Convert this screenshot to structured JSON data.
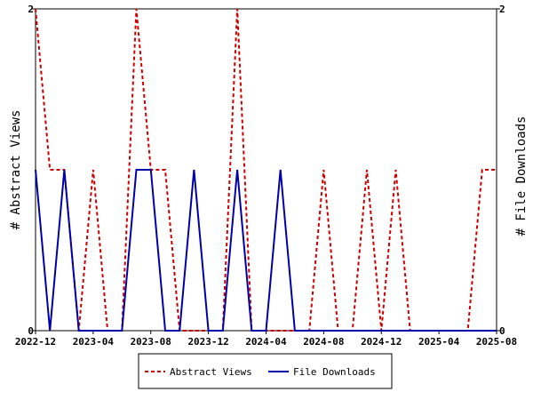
{
  "chart_data": {
    "type": "line",
    "ylabel_left": "# Abstract Views",
    "ylabel_right": "# File Downloads",
    "ylim": [
      0,
      2
    ],
    "yticks": [
      "0",
      "2"
    ],
    "xtick_labels": [
      "2022-12",
      "2023-04",
      "2023-08",
      "2023-12",
      "2024-04",
      "2024-08",
      "2024-12",
      "2025-04",
      "2025-08"
    ],
    "x": [
      "2022-12",
      "2023-01",
      "2023-02",
      "2023-03",
      "2023-04",
      "2023-05",
      "2023-06",
      "2023-07",
      "2023-08",
      "2023-09",
      "2023-10",
      "2023-11",
      "2023-12",
      "2024-01",
      "2024-02",
      "2024-03",
      "2024-04",
      "2024-05",
      "2024-06",
      "2024-07",
      "2024-08",
      "2024-09",
      "2024-10",
      "2024-11",
      "2024-12",
      "2025-01",
      "2025-02",
      "2025-03",
      "2025-04",
      "2025-05",
      "2025-06",
      "2025-07",
      "2025-08"
    ],
    "series": [
      {
        "name": "Abstract Views",
        "color": "#cc0000",
        "dash": "dashed",
        "values": [
          2,
          1,
          1,
          0,
          1,
          0,
          0,
          2,
          1,
          1,
          0,
          0,
          0,
          0,
          2,
          0,
          0,
          0,
          0,
          0,
          1,
          0,
          0,
          1,
          0,
          1,
          0,
          0,
          0,
          0,
          0,
          1,
          1
        ]
      },
      {
        "name": "File Downloads",
        "color": "#0000aa",
        "dash": "solid",
        "values": [
          1,
          0,
          1,
          0,
          0,
          0,
          0,
          1,
          1,
          0,
          0,
          1,
          0,
          0,
          1,
          0,
          0,
          1,
          0,
          0,
          0,
          0,
          0,
          0,
          0,
          0,
          0,
          0,
          0,
          0,
          0,
          0,
          0
        ]
      }
    ],
    "legend_position": "bottom"
  }
}
